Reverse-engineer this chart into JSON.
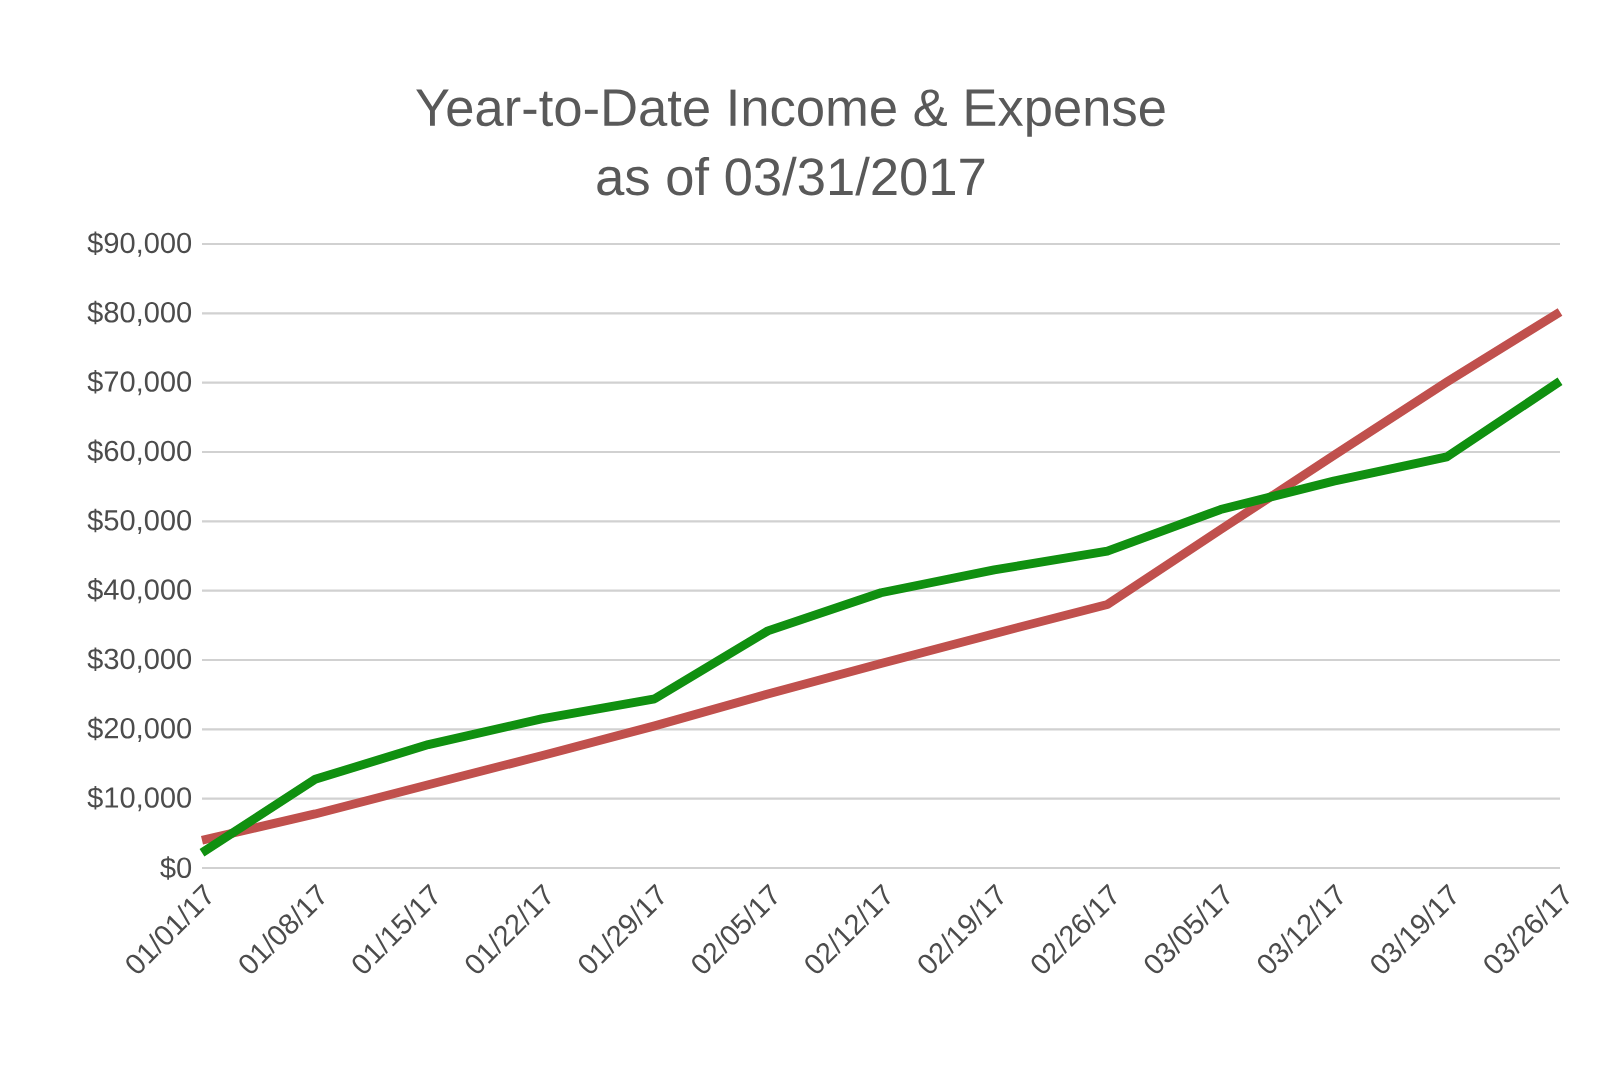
{
  "chart_data": {
    "type": "line",
    "title": "Year-to-Date Income & Expense\nas of 03/31/2017",
    "categories": [
      "01/01/17",
      "01/08/17",
      "01/15/17",
      "01/22/17",
      "01/29/17",
      "02/05/17",
      "02/12/17",
      "02/19/17",
      "02/26/17",
      "03/05/17",
      "03/12/17",
      "03/19/17",
      "03/26/17"
    ],
    "series": [
      {
        "color": "#c0504d",
        "values": [
          4000,
          7800,
          12000,
          16200,
          20500,
          25100,
          29500,
          33800,
          38000,
          48800,
          59500,
          70100,
          80200
        ]
      },
      {
        "color": "#109010",
        "values": [
          2200,
          12800,
          17800,
          21500,
          24400,
          34200,
          39700,
          43000,
          45700,
          51700,
          55800,
          59300,
          70200
        ]
      }
    ],
    "ylim": [
      0,
      90000
    ],
    "yticks": [
      {
        "value": 0,
        "label": "$0"
      },
      {
        "value": 10000,
        "label": "$10,000"
      },
      {
        "value": 20000,
        "label": "$20,000"
      },
      {
        "value": 30000,
        "label": "$30,000"
      },
      {
        "value": 40000,
        "label": "$40,000"
      },
      {
        "value": 50000,
        "label": "$50,000"
      },
      {
        "value": 60000,
        "label": "$60,000"
      },
      {
        "value": 70000,
        "label": "$70,000"
      },
      {
        "value": 80000,
        "label": "$80,000"
      },
      {
        "value": 90000,
        "label": "$90,000"
      }
    ],
    "grid": "y",
    "legend": false,
    "marker": "none",
    "line_style": "solid"
  }
}
